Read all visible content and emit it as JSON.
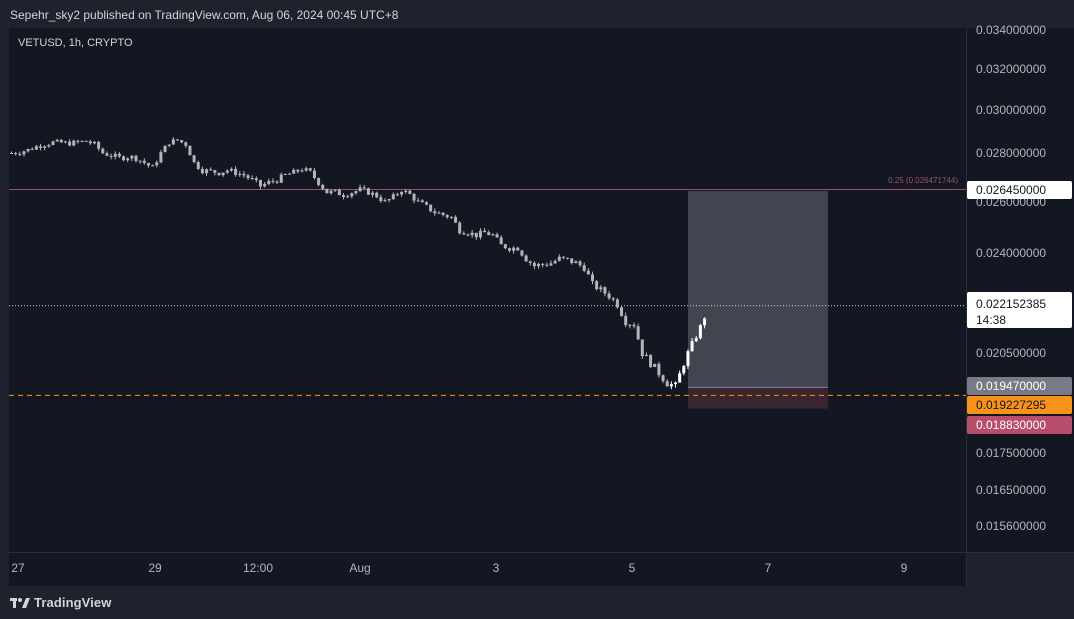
{
  "header": {
    "published_by": "Sepehr_sky2 published on TradingView.com, Aug 06, 2024 00:45 UTC+8"
  },
  "symbol_label": "VETUSD, 1h, CRYPTO",
  "footer": {
    "brand": "TradingView",
    "logo_icon": "tradingview-logo-icon"
  },
  "colors": {
    "background": "#131722",
    "frame": "#1e222d",
    "candle": "#b2b5be",
    "candle_bright": "#ffffff",
    "resistance_line": "#9c4f73",
    "entry_dashed": "#f7931a",
    "profit_zone": "#4a4d57",
    "stop_zone": "#3a2630",
    "stop_badge": "#b84d6c",
    "entry_badge": "#f7931a",
    "target_badge": "#ffffff",
    "level_badge": "#787b86"
  },
  "chart_data": {
    "type": "candlestick",
    "symbol": "VETUSD",
    "interval": "1h",
    "exchange": "CRYPTO",
    "y_axis": {
      "ticks": [
        "0.034000000",
        "0.032000000",
        "0.030000000",
        "0.028000000",
        "0.026000000",
        "0.024000000",
        "0.020500000",
        "0.017500000",
        "0.016500000",
        "0.015600000"
      ]
    },
    "x_axis": {
      "ticks": [
        "27",
        "29",
        "12:00",
        "Aug",
        "3",
        "5",
        "7",
        "9"
      ]
    },
    "close_path": [
      [
        0,
        0.028
      ],
      [
        2,
        0.02805
      ],
      [
        4,
        0.02815
      ],
      [
        6,
        0.0283
      ],
      [
        8,
        0.0284
      ],
      [
        10,
        0.0285
      ],
      [
        12,
        0.02848
      ],
      [
        14,
        0.02845
      ],
      [
        16,
        0.0285
      ],
      [
        18,
        0.02855
      ],
      [
        20,
        0.0284
      ],
      [
        22,
        0.028
      ],
      [
        24,
        0.0279
      ],
      [
        26,
        0.0278
      ],
      [
        28,
        0.02785
      ],
      [
        30,
        0.0278
      ],
      [
        32,
        0.0276
      ],
      [
        34,
        0.0274
      ],
      [
        36,
        0.028
      ],
      [
        38,
        0.0285
      ],
      [
        40,
        0.0286
      ],
      [
        42,
        0.0284
      ],
      [
        44,
        0.0276
      ],
      [
        46,
        0.0273
      ],
      [
        48,
        0.02725
      ],
      [
        50,
        0.0272
      ],
      [
        52,
        0.0273
      ],
      [
        54,
        0.0272
      ],
      [
        56,
        0.0271
      ],
      [
        58,
        0.0269
      ],
      [
        60,
        0.02665
      ],
      [
        62,
        0.0268
      ],
      [
        64,
        0.0269
      ],
      [
        66,
        0.0271
      ],
      [
        68,
        0.0272
      ],
      [
        70,
        0.02735
      ],
      [
        72,
        0.0272
      ],
      [
        74,
        0.0268
      ],
      [
        76,
        0.0264
      ],
      [
        78,
        0.0264
      ],
      [
        80,
        0.0263
      ],
      [
        82,
        0.0264
      ],
      [
        84,
        0.0265
      ],
      [
        86,
        0.0264
      ],
      [
        88,
        0.02625
      ],
      [
        90,
        0.026
      ],
      [
        92,
        0.0262
      ],
      [
        94,
        0.0265
      ],
      [
        96,
        0.0263
      ],
      [
        98,
        0.026
      ],
      [
        100,
        0.0258
      ],
      [
        102,
        0.0256
      ],
      [
        104,
        0.0255
      ],
      [
        106,
        0.0254
      ],
      [
        108,
        0.0249
      ],
      [
        110,
        0.0248
      ],
      [
        112,
        0.0247
      ],
      [
        114,
        0.0248
      ],
      [
        116,
        0.0247
      ],
      [
        118,
        0.0243
      ],
      [
        120,
        0.0242
      ],
      [
        122,
        0.0242
      ],
      [
        124,
        0.0238
      ],
      [
        126,
        0.02355
      ],
      [
        128,
        0.0236
      ],
      [
        130,
        0.02365
      ],
      [
        132,
        0.0238
      ],
      [
        134,
        0.02375
      ],
      [
        136,
        0.02365
      ],
      [
        138,
        0.0235
      ],
      [
        140,
        0.0229
      ],
      [
        142,
        0.0227
      ],
      [
        144,
        0.0225
      ],
      [
        146,
        0.0222
      ],
      [
        148,
        0.0216
      ],
      [
        150,
        0.0215
      ],
      [
        152,
        0.0205
      ],
      [
        154,
        0.0202
      ],
      [
        156,
        0.0199
      ],
      [
        158,
        0.0196
      ],
      [
        160,
        0.0195
      ],
      [
        162,
        0.0202
      ],
      [
        164,
        0.0208
      ],
      [
        166,
        0.0214
      ],
      [
        168,
        0.02215
      ]
    ],
    "current_price": "0.022152385",
    "countdown": "14:38",
    "levels": {
      "target": {
        "value": 0.02645,
        "label": "0.026450000"
      },
      "fib_label": "0.25 (0.026471744)",
      "current": {
        "value": 0.022152385,
        "label": "0.022152385"
      },
      "entry_top": {
        "value": 0.01947,
        "label": "0.019470000"
      },
      "entry": {
        "value": 0.019227295,
        "label": "0.019227295"
      },
      "stop": {
        "value": 0.01883,
        "label": "0.018830000"
      }
    },
    "position_box": {
      "start_candle": 160,
      "end_candle": 180,
      "profit_from": 0.02645,
      "profit_to": 0.01947,
      "stop_from": 0.01947,
      "stop_to": 0.01883
    },
    "grid": false
  }
}
